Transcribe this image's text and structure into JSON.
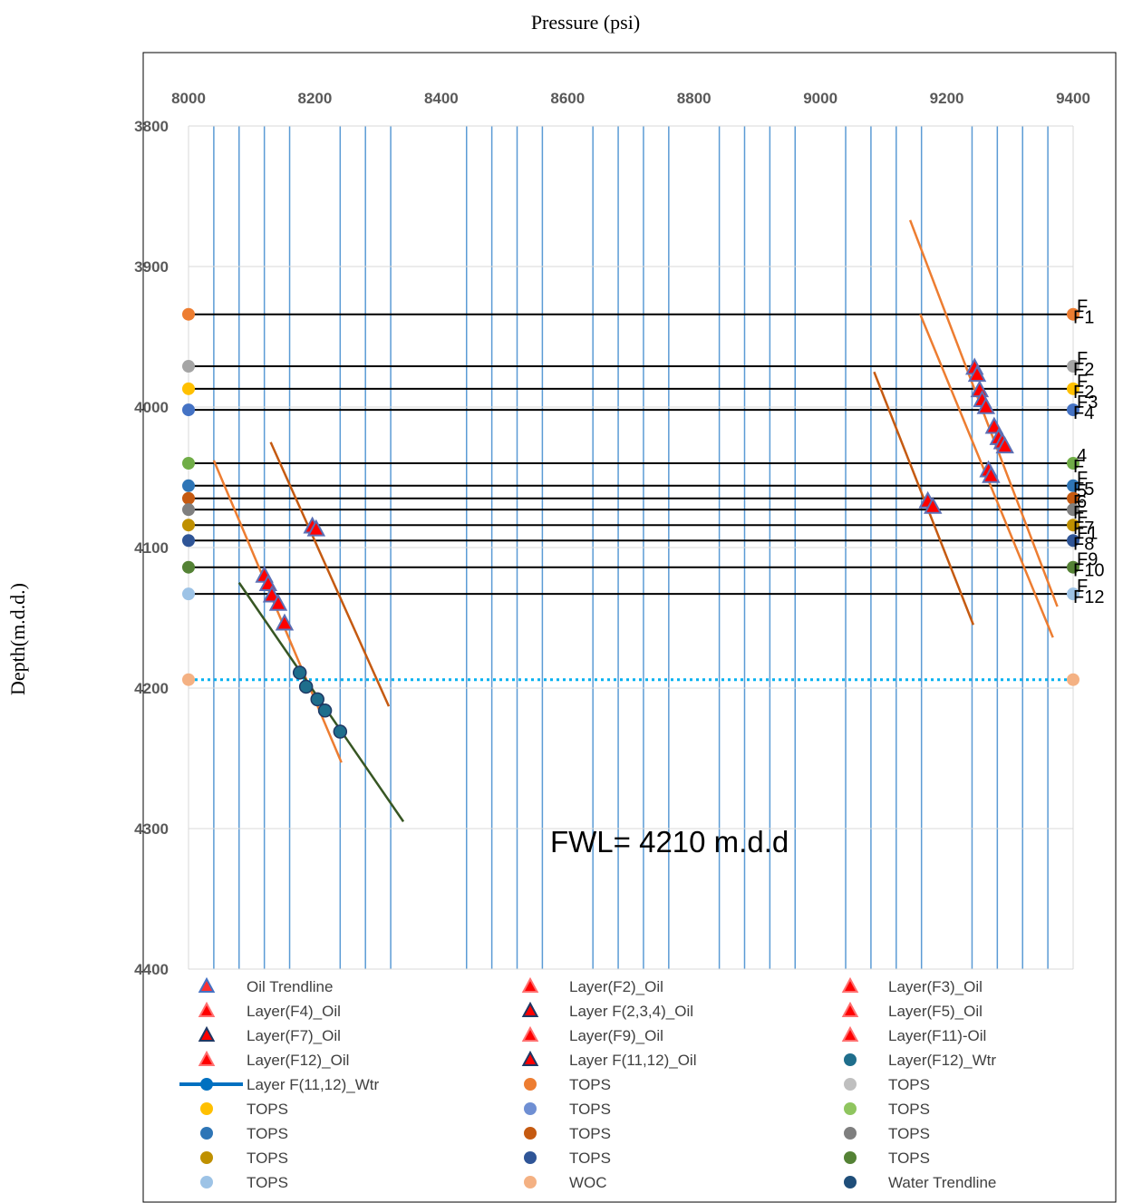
{
  "chart_data": {
    "type": "scatter",
    "title": "Pressure (psi)",
    "xlabel": "Pressure (psi)",
    "ylabel": "Depth(m.d.d.)",
    "xlim": [
      8000,
      9400
    ],
    "ylim": [
      3800,
      4400
    ],
    "y_inverted": true,
    "x_axis_position": "top",
    "x_ticks": [
      "8000",
      "8200",
      "8400",
      "8600",
      "8800",
      "9000",
      "9200",
      "9400"
    ],
    "y_ticks": [
      "3800",
      "3900",
      "4000",
      "4100",
      "4200",
      "4300",
      "4400"
    ],
    "vertical_grid_x": [
      8040,
      8080,
      8120,
      8160,
      8240,
      8280,
      8320,
      8440,
      8480,
      8520,
      8560,
      8640,
      8680,
      8720,
      8760,
      8840,
      8880,
      8920,
      8960,
      9040,
      9080,
      9120,
      9160,
      9240,
      9280,
      9320,
      9360
    ],
    "annotation": "FWL= 4210 m.d.d",
    "tops": [
      {
        "depth": 3934,
        "color": "#ED7D31",
        "label": "F1",
        "label_top": "F"
      },
      {
        "depth": 3971,
        "color": "#A5A5A5",
        "label": "F2",
        "label_top": "F"
      },
      {
        "depth": 3987,
        "color": "#FFC000",
        "label": "F2",
        "label_top": "F"
      },
      {
        "depth": 4002,
        "color": "#4472C4",
        "label": "F4",
        "label_top": "F3"
      },
      {
        "depth": 4040,
        "color": "#70AD47",
        "label": "F",
        "label_top": "4"
      },
      {
        "depth": 4056,
        "color": "#2E75B6",
        "label": "F5",
        "label_top": "F"
      },
      {
        "depth": 4065,
        "color": "#C55A11",
        "label": "F",
        "label_top": "5"
      },
      {
        "depth": 4073,
        "color": "#7F7F7F",
        "label": "F",
        "label_top": "6"
      },
      {
        "depth": 4084,
        "color": "#BF9000",
        "label": "F7",
        "label_top": "F"
      },
      {
        "depth": 4095,
        "color": "#2F5597",
        "label": "F8",
        "label_top": "F1"
      },
      {
        "depth": 4114,
        "color": "#548235",
        "label": "F10",
        "label_top": "F9"
      },
      {
        "depth": 4133,
        "color": "#9DC3E6",
        "label": "F12",
        "label_top": "F"
      }
    ],
    "woc": {
      "depth": 4194,
      "color": "#00B0F0",
      "marker_color": "#F4B183"
    },
    "series": [
      {
        "name": "Oil Trendline",
        "marker": "triangle",
        "color": "#4472C4",
        "x": [],
        "y": []
      },
      {
        "name": "Layer(F2)_Oil",
        "marker": "triangle",
        "color": "#FF0000",
        "points": [
          [
            9244,
            3972
          ],
          [
            9248,
            3977
          ]
        ]
      },
      {
        "name": "Layer(F3)_Oil",
        "marker": "triangle",
        "color": "#FF0000",
        "points": [
          [
            9252,
            3988
          ],
          [
            9256,
            3995
          ]
        ]
      },
      {
        "name": "Layer(F4)_Oil",
        "marker": "triangle",
        "color": "#FF0000",
        "points": [
          [
            9262,
            4000
          ],
          [
            9275,
            4014
          ],
          [
            9282,
            4022
          ]
        ]
      },
      {
        "name": "Layer F(2,3,4)_Oil",
        "marker": "triangle",
        "color": "#FF0000",
        "points": [
          [
            9288,
            4025
          ],
          [
            9292,
            4028
          ]
        ]
      },
      {
        "name": "Layer(F5)_Oil",
        "marker": "triangle",
        "color": "#FF0000",
        "points": [
          [
            9266,
            4045
          ],
          [
            9270,
            4049
          ]
        ]
      },
      {
        "name": "Layer(F7)_Oil",
        "marker": "triangle",
        "color": "#FF0000",
        "points": [
          [
            9170,
            4067
          ],
          [
            9178,
            4071
          ]
        ]
      },
      {
        "name": "Layer(F9)_Oil",
        "marker": "triangle",
        "color": "#FF0000",
        "points": [
          [
            8196,
            4085
          ],
          [
            8202,
            4087
          ]
        ]
      },
      {
        "name": "Layer(F11)-Oil",
        "marker": "triangle",
        "color": "#FF0000",
        "points": [
          [
            8120,
            4120
          ],
          [
            8126,
            4126
          ]
        ]
      },
      {
        "name": "Layer(F12)_Oil",
        "marker": "triangle",
        "color": "#FF0000",
        "points": [
          [
            8132,
            4134
          ],
          [
            8142,
            4140
          ]
        ]
      },
      {
        "name": "Layer F(11,12)_Oil",
        "marker": "triangle",
        "color": "#FF0000",
        "points": [
          [
            8152,
            4154
          ]
        ]
      },
      {
        "name": "Layer(F12)_Wtr",
        "marker": "circle",
        "color": "#1F6E8C",
        "points": [
          [
            8176,
            4189
          ],
          [
            8186,
            4199
          ],
          [
            8204,
            4208
          ],
          [
            8216,
            4216
          ],
          [
            8240,
            4231
          ]
        ]
      },
      {
        "name": "Layer F(11,12)_Wtr",
        "marker": "line-circle",
        "color": "#0070C0",
        "x": [],
        "y": []
      },
      {
        "name": "TOPS",
        "marker": "circle",
        "color": "#ED7D31"
      },
      {
        "name": "TOPS",
        "marker": "circle",
        "color": "#BFBFBF"
      },
      {
        "name": "TOPS",
        "marker": "circle",
        "color": "#FFC000"
      },
      {
        "name": "TOPS",
        "marker": "circle",
        "color": "#6F8FD3"
      },
      {
        "name": "TOPS",
        "marker": "circle",
        "color": "#8FC55F"
      },
      {
        "name": "TOPS",
        "marker": "circle",
        "color": "#2E75B6"
      },
      {
        "name": "TOPS",
        "marker": "circle",
        "color": "#C55A11"
      },
      {
        "name": "TOPS",
        "marker": "circle",
        "color": "#7F7F7F"
      },
      {
        "name": "TOPS",
        "marker": "circle",
        "color": "#BF9000"
      },
      {
        "name": "TOPS",
        "marker": "circle",
        "color": "#2F5597"
      },
      {
        "name": "TOPS",
        "marker": "circle",
        "color": "#548235"
      },
      {
        "name": "TOPS",
        "marker": "circle",
        "color": "#9DC3E6"
      },
      {
        "name": "WOC",
        "marker": "circle",
        "color": "#F4B183"
      },
      {
        "name": "Water Trendline",
        "marker": "circle",
        "color": "#1F4E79"
      }
    ],
    "trendlines": [
      {
        "color": "#ED7D31",
        "points": [
          [
            9142,
            3867
          ],
          [
            9375,
            4142
          ]
        ]
      },
      {
        "color": "#ED7D31",
        "points": [
          [
            9158,
            3934
          ],
          [
            9368,
            4164
          ]
        ]
      },
      {
        "color": "#C55A11",
        "points": [
          [
            9085,
            3975
          ],
          [
            9242,
            4155
          ]
        ]
      },
      {
        "color": "#ED7D31",
        "points": [
          [
            8040,
            4038
          ],
          [
            8242,
            4253
          ]
        ]
      },
      {
        "color": "#C55A11",
        "points": [
          [
            8130,
            4025
          ],
          [
            8317,
            4213
          ]
        ]
      },
      {
        "color": "#375623",
        "points": [
          [
            8080,
            4125
          ],
          [
            8340,
            4295
          ]
        ]
      }
    ]
  }
}
